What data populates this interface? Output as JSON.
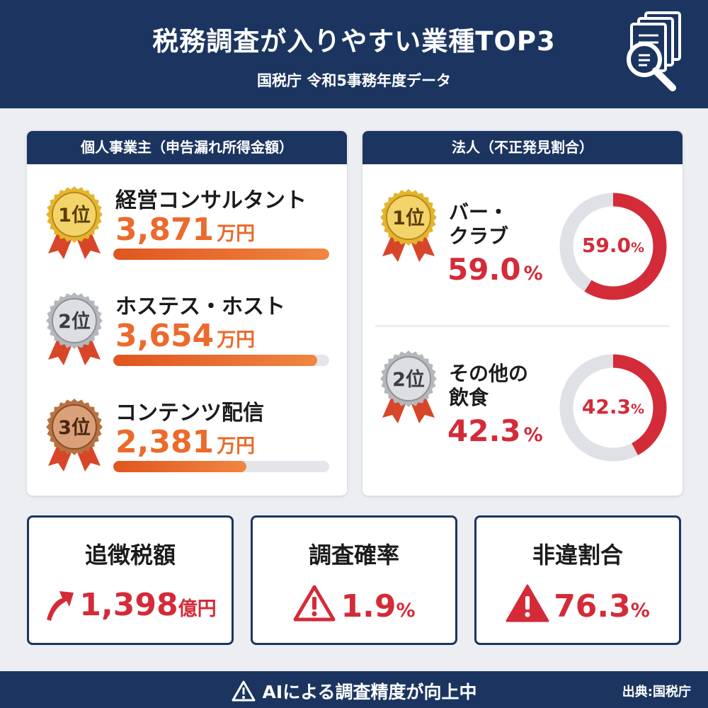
{
  "header": {
    "title": "税務調査が入りやすい業種TOP3",
    "subtitle": "国税庁 令和5事務年度データ"
  },
  "individual": {
    "title": "個人事業主（申告漏れ所得金額）",
    "items": [
      {
        "rank": "1位",
        "name": "経営コンサルタント",
        "value": "3,871",
        "unit": "万円",
        "fill": 1.0,
        "medal": "gold"
      },
      {
        "rank": "2位",
        "name": "ホステス・ホスト",
        "value": "3,654",
        "unit": "万円",
        "fill": 0.944,
        "medal": "silver"
      },
      {
        "rank": "3位",
        "name": "コンテンツ配信",
        "value": "2,381",
        "unit": "万円",
        "fill": 0.615,
        "medal": "bronze"
      }
    ]
  },
  "corporate": {
    "title": "法人（不正発見割合）",
    "items": [
      {
        "rank": "1位",
        "name_line1": "バー・",
        "name_line2": "クラブ",
        "value": "59.0",
        "unit": "%",
        "percent": 59.0,
        "donut_value": "59.0",
        "donut_unit": "%",
        "medal": "gold"
      },
      {
        "rank": "2位",
        "name_line1": "その他の",
        "name_line2": "飲食",
        "value": "42.3",
        "unit": "%",
        "percent": 42.3,
        "donut_value": "42.3",
        "donut_unit": "%",
        "medal": "silver"
      }
    ]
  },
  "stats": [
    {
      "label": "追徴税額",
      "value": "1,398",
      "unit": "億円",
      "icon": "arrow-up-icon"
    },
    {
      "label": "調査確率",
      "value": "1.9",
      "unit": "%",
      "icon": "warning-outline-icon"
    },
    {
      "label": "非違割合",
      "value": "76.3",
      "unit": "%",
      "icon": "warning-filled-icon"
    }
  ],
  "footer": {
    "message": "AIによる調査精度が向上中",
    "source": "出典:国税庁"
  },
  "colors": {
    "navy": "#1b3560",
    "orange": "#eb6a2c",
    "red": "#d42b38",
    "gold": "#d9a520",
    "silver": "#a8abb0",
    "bronze": "#b0673a"
  }
}
